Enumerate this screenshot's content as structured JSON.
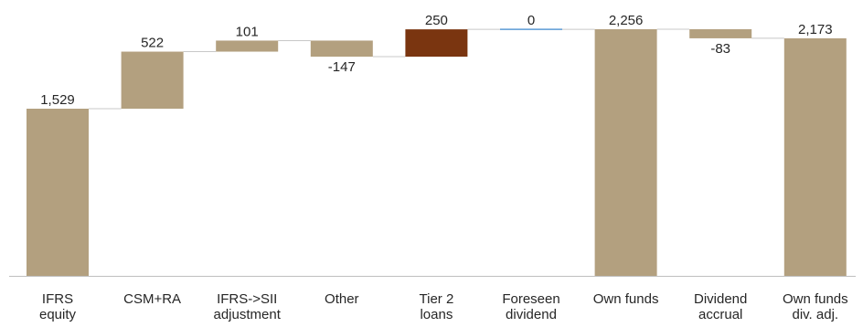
{
  "chart_data": {
    "type": "bar",
    "subtype": "waterfall",
    "categories": [
      [
        "IFRS",
        "equity"
      ],
      [
        "CSM+RA"
      ],
      [
        "IFRS->SII",
        "adjustment"
      ],
      [
        "Other"
      ],
      [
        "Tier 2",
        "loans"
      ],
      [
        "Foreseen",
        "dividend"
      ],
      [
        "Own funds"
      ],
      [
        "Dividend",
        "accrual"
      ],
      [
        "Own funds",
        "div. adj."
      ]
    ],
    "values": [
      1529,
      522,
      101,
      -147,
      250,
      0,
      2256,
      -83,
      2173
    ],
    "value_labels": [
      "1,529",
      "522",
      "101",
      "-147",
      "250",
      "0",
      "2,256",
      "-83",
      "2,173"
    ],
    "bar_kind": [
      "total",
      "delta",
      "delta",
      "delta",
      "delta",
      "delta",
      "total",
      "delta",
      "total"
    ],
    "colors": {
      "default": "#b3a07f",
      "highlight": "#7a3510",
      "zero": "#5b9bd5",
      "connector": "#c8c8c8",
      "axis": "#bfbfbf"
    },
    "bar_colors": [
      "default",
      "default",
      "default",
      "default",
      "highlight",
      "zero",
      "default",
      "default",
      "default"
    ],
    "ylim": [
      0,
      2256
    ],
    "grid": false,
    "title": "",
    "xlabel": "",
    "ylabel": ""
  }
}
